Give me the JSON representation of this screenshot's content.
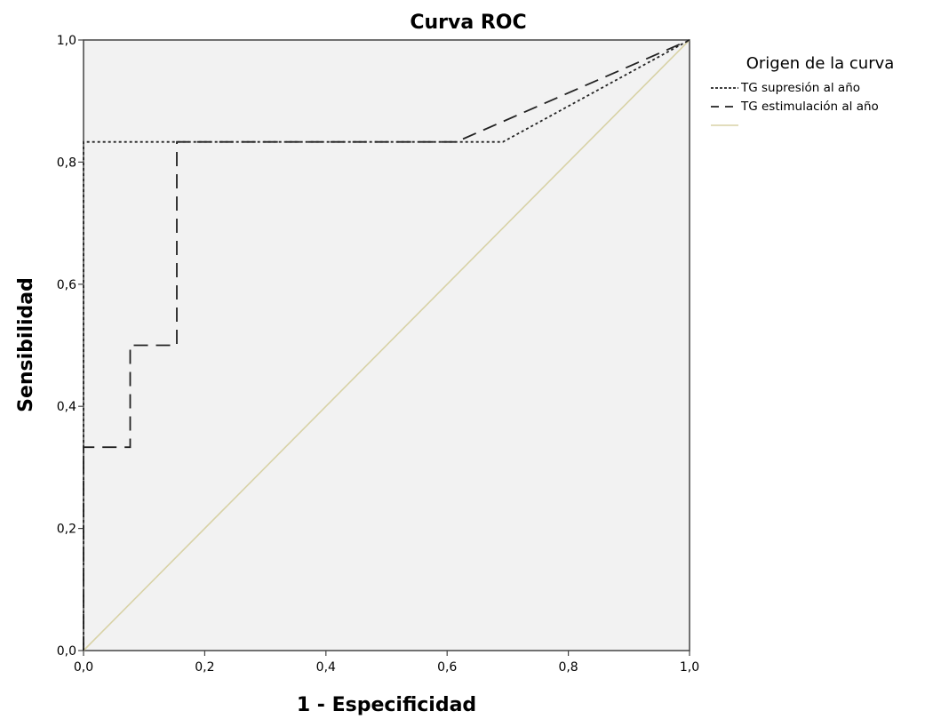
{
  "chart_data": {
    "type": "line",
    "title": "Curva ROC",
    "xlabel": "1 - Especificidad",
    "ylabel": "Sensibilidad",
    "xlim": [
      0,
      1
    ],
    "ylim": [
      0,
      1
    ],
    "x_ticks": [
      "0,0",
      "0,2",
      "0,4",
      "0,6",
      "0,8",
      "1,0"
    ],
    "y_ticks": [
      "0,0",
      "0,2",
      "0,4",
      "0,6",
      "0,8",
      "1,0"
    ],
    "grid": false,
    "legend_position": "right",
    "legend_title": "Origen de la curva",
    "series": [
      {
        "name": "TG supresión al año",
        "style": "dotted",
        "color": "#222222",
        "x": [
          0.0,
          0.0,
          0.692,
          1.0
        ],
        "y": [
          0.0,
          0.833,
          0.833,
          1.0
        ]
      },
      {
        "name": "TG estimulación al año",
        "style": "dashed",
        "color": "#222222",
        "x": [
          0.0,
          0.0,
          0.077,
          0.077,
          0.154,
          0.154,
          0.615,
          1.0
        ],
        "y": [
          0.0,
          0.333,
          0.333,
          0.5,
          0.5,
          0.833,
          0.833,
          1.0
        ]
      },
      {
        "name": "",
        "style": "solid",
        "color": "#d8d2a6",
        "x": [
          0.0,
          1.0
        ],
        "y": [
          0.0,
          1.0
        ]
      }
    ]
  },
  "colors": {
    "plot_background": "#f2f2f2",
    "reference_line": "#d8d2a6",
    "curves": "#222222"
  }
}
